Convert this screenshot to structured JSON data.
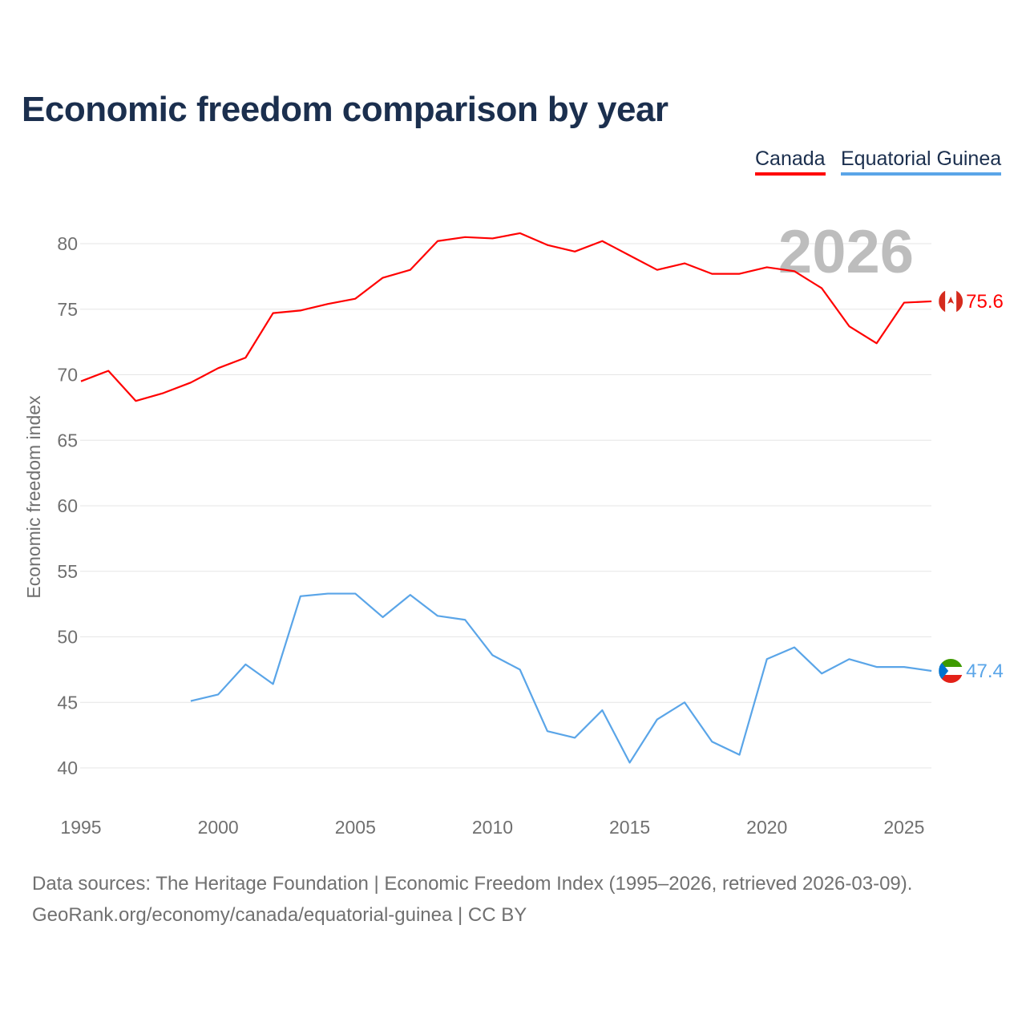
{
  "chart_data": {
    "type": "line",
    "title": "Economic freedom comparison by year",
    "ylabel": "Economic freedom index",
    "xlabel": "",
    "xlim": [
      1995,
      2026
    ],
    "ylim": [
      38,
      83
    ],
    "yticks": [
      40,
      45,
      50,
      55,
      60,
      65,
      70,
      75,
      80
    ],
    "xticks": [
      1995,
      2000,
      2005,
      2010,
      2015,
      2020,
      2025
    ],
    "grid": true,
    "legend_position": "top-right",
    "year_watermark": "2026",
    "series": [
      {
        "name": "Canada",
        "color": "#ff0000",
        "end_label": "75.6",
        "x": [
          1995,
          1996,
          1997,
          1998,
          1999,
          2000,
          2001,
          2002,
          2003,
          2004,
          2005,
          2006,
          2007,
          2008,
          2009,
          2010,
          2011,
          2012,
          2013,
          2014,
          2015,
          2016,
          2017,
          2018,
          2019,
          2020,
          2021,
          2022,
          2023,
          2024,
          2025,
          2026
        ],
        "values": [
          69.5,
          70.3,
          68.0,
          68.6,
          69.4,
          70.5,
          71.3,
          74.7,
          74.9,
          75.4,
          75.8,
          77.4,
          78.0,
          80.2,
          80.5,
          80.4,
          80.8,
          79.9,
          79.4,
          80.2,
          79.1,
          78.0,
          78.5,
          77.7,
          77.7,
          78.2,
          77.9,
          76.6,
          73.7,
          72.4,
          75.5,
          75.6
        ]
      },
      {
        "name": "Equatorial Guinea",
        "color": "#5aa5e8",
        "end_label": "47.4",
        "x": [
          1999,
          2000,
          2001,
          2002,
          2003,
          2004,
          2005,
          2006,
          2007,
          2008,
          2009,
          2010,
          2011,
          2012,
          2013,
          2014,
          2015,
          2016,
          2017,
          2018,
          2019,
          2020,
          2021,
          2022,
          2023,
          2024,
          2025,
          2026
        ],
        "values": [
          45.1,
          45.6,
          47.9,
          46.4,
          53.1,
          53.3,
          53.3,
          51.5,
          53.2,
          51.6,
          51.3,
          48.6,
          47.5,
          42.8,
          42.3,
          44.4,
          40.4,
          43.7,
          45.0,
          42.0,
          41.0,
          48.3,
          49.2,
          47.2,
          48.3,
          47.7,
          47.7,
          47.4
        ]
      }
    ]
  },
  "footer": {
    "source": "Data sources: The Heritage Foundation | Economic Freedom Index (1995–2026, retrieved 2026-03-09).",
    "link": "GeoRank.org/economy/canada/equatorial-guinea | CC BY"
  }
}
